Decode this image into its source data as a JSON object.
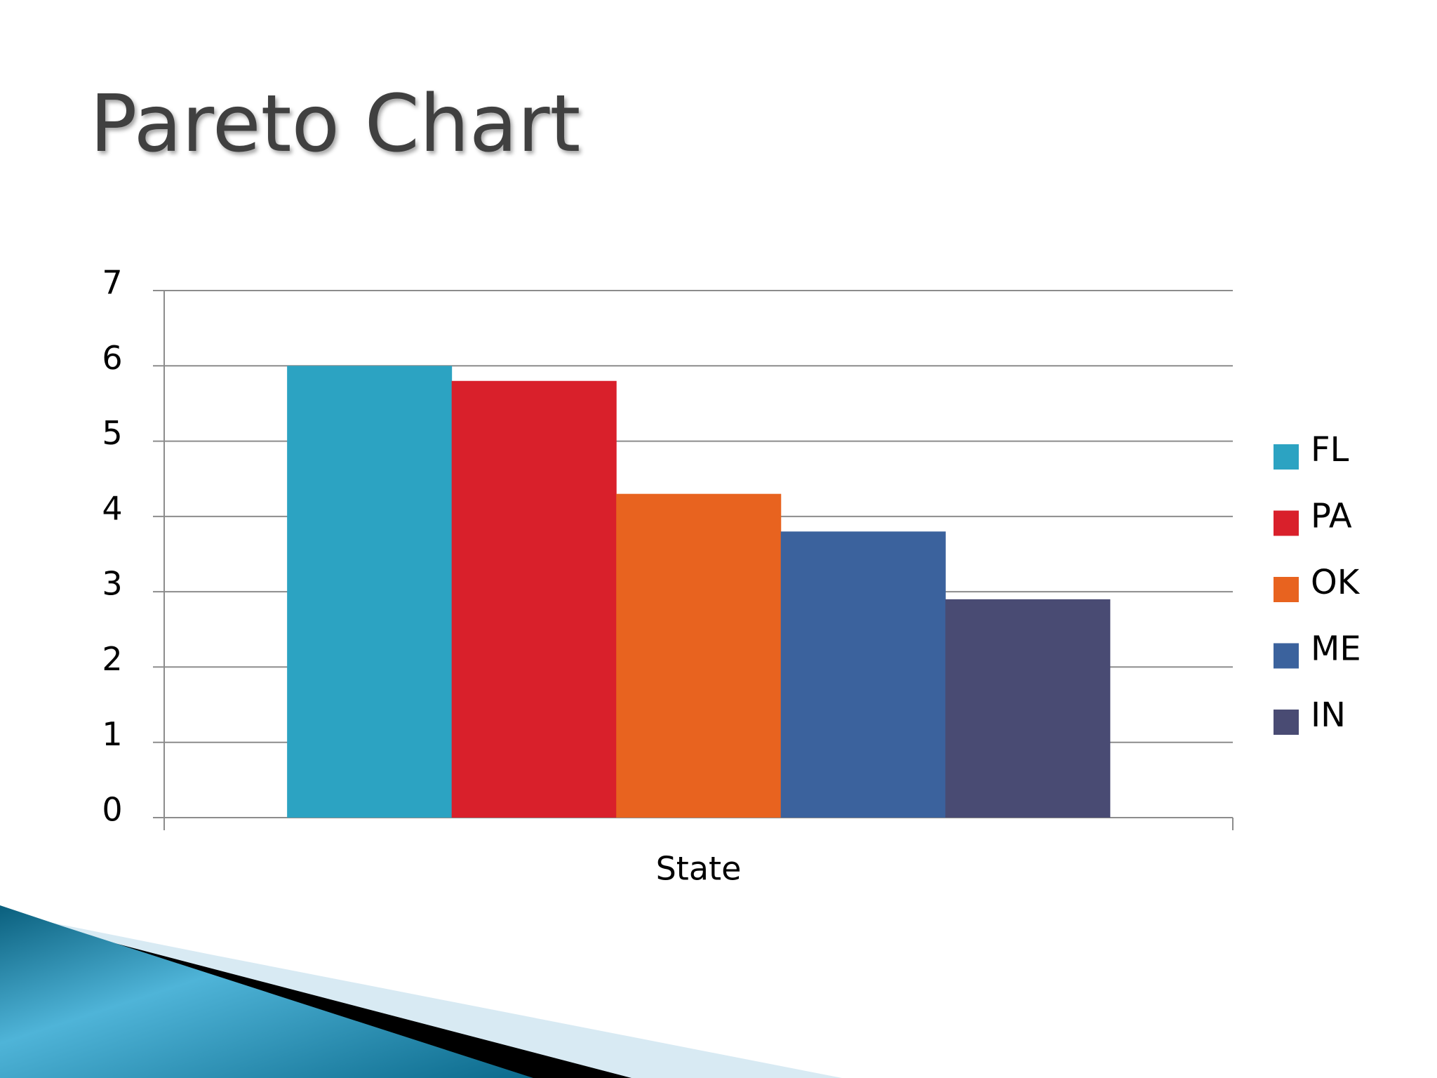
{
  "chart_data": {
    "type": "bar",
    "title": "Pareto Chart",
    "categories": [
      "State"
    ],
    "series": [
      {
        "name": "FL",
        "color": "#2ca3c2",
        "values": [
          6
        ]
      },
      {
        "name": "PA",
        "color": "#d9202b",
        "values": [
          5.8
        ]
      },
      {
        "name": "OK",
        "color": "#e8631f",
        "values": [
          4.3
        ]
      },
      {
        "name": "ME",
        "color": "#3b629d",
        "values": [
          3.8
        ]
      },
      {
        "name": "IN",
        "color": "#494b73",
        "values": [
          2.9
        ]
      }
    ],
    "ylim": [
      0,
      7
    ],
    "yticks": [
      0,
      1,
      2,
      3,
      4,
      5,
      6,
      7
    ],
    "grid": true,
    "legend": "right"
  }
}
